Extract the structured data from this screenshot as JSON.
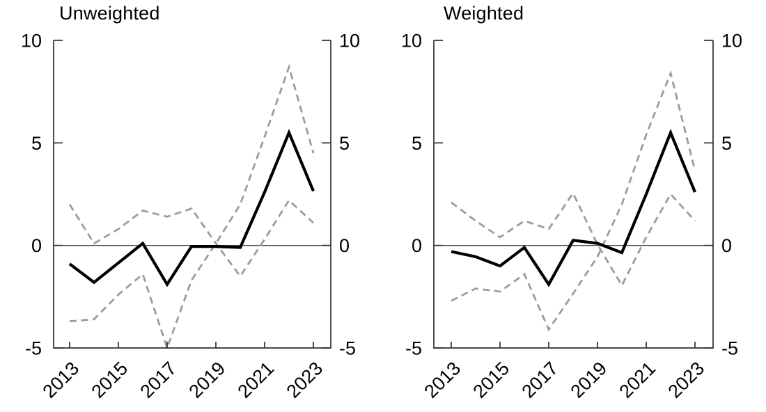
{
  "figure": {
    "background": "#ffffff"
  },
  "chart_data": [
    {
      "type": "line",
      "title": "Unweighted",
      "x": [
        2013,
        2014,
        2015,
        2016,
        2017,
        2018,
        2019,
        2020,
        2021,
        2022,
        2023
      ],
      "xtick_labels": [
        "2013",
        "2015",
        "2017",
        "2019",
        "2021",
        "2023"
      ],
      "yticks": [
        10,
        5,
        0,
        -5
      ],
      "ytick_labels": [
        "10",
        "5",
        "0",
        "-5"
      ],
      "ylim": [
        -5,
        10
      ],
      "grid": false,
      "legend": "none",
      "zero_line": true,
      "axis_color": "#2e2e2e",
      "zero_line_color": "#474747",
      "series": [
        {
          "name": "solid-line",
          "style": "solid",
          "color": "#000000",
          "width": 4.2,
          "values": [
            -0.9,
            -1.8,
            -0.85,
            0.1,
            -1.9,
            -0.05,
            -0.05,
            -0.1,
            2.6,
            5.5,
            2.65
          ]
        },
        {
          "name": "dashed-line-upper-start",
          "style": "dashed",
          "color": "#9c9c9c",
          "width": 2.8,
          "values": [
            2.0,
            0.1,
            0.8,
            1.7,
            1.4,
            1.8,
            0.1,
            -1.5,
            0.3,
            2.2,
            1.1
          ]
        },
        {
          "name": "dashed-line-lower-start",
          "style": "dashed",
          "color": "#9c9c9c",
          "width": 2.8,
          "values": [
            -3.7,
            -3.6,
            -2.4,
            -1.4,
            -5.0,
            -1.7,
            0.1,
            2.0,
            5.3,
            8.7,
            4.5
          ]
        }
      ]
    },
    {
      "type": "line",
      "title": "Weighted",
      "x": [
        2013,
        2014,
        2015,
        2016,
        2017,
        2018,
        2019,
        2020,
        2021,
        2022,
        2023
      ],
      "xtick_labels": [
        "2013",
        "2015",
        "2017",
        "2019",
        "2021",
        "2023"
      ],
      "yticks": [
        10,
        5,
        0,
        -5
      ],
      "ytick_labels": [
        "10",
        "5",
        "0",
        "-5"
      ],
      "ylim": [
        -5,
        10
      ],
      "grid": false,
      "legend": "none",
      "zero_line": true,
      "axis_color": "#2e2e2e",
      "zero_line_color": "#474747",
      "series": [
        {
          "name": "solid-line",
          "style": "solid",
          "color": "#000000",
          "width": 4.2,
          "values": [
            -0.3,
            -0.55,
            -1.0,
            -0.1,
            -1.9,
            0.25,
            0.1,
            -0.35,
            2.5,
            5.5,
            2.6
          ]
        },
        {
          "name": "dashed-line-upper-start",
          "style": "dashed",
          "color": "#9c9c9c",
          "width": 2.8,
          "values": [
            2.1,
            1.2,
            0.4,
            1.2,
            0.8,
            2.55,
            0.05,
            -1.95,
            0.4,
            2.5,
            1.2
          ]
        },
        {
          "name": "dashed-line-lower-start",
          "style": "dashed",
          "color": "#9c9c9c",
          "width": 2.8,
          "values": [
            -2.7,
            -2.1,
            -2.25,
            -1.4,
            -4.1,
            -2.35,
            -0.55,
            2.0,
            5.4,
            8.4,
            3.65
          ]
        }
      ]
    }
  ]
}
